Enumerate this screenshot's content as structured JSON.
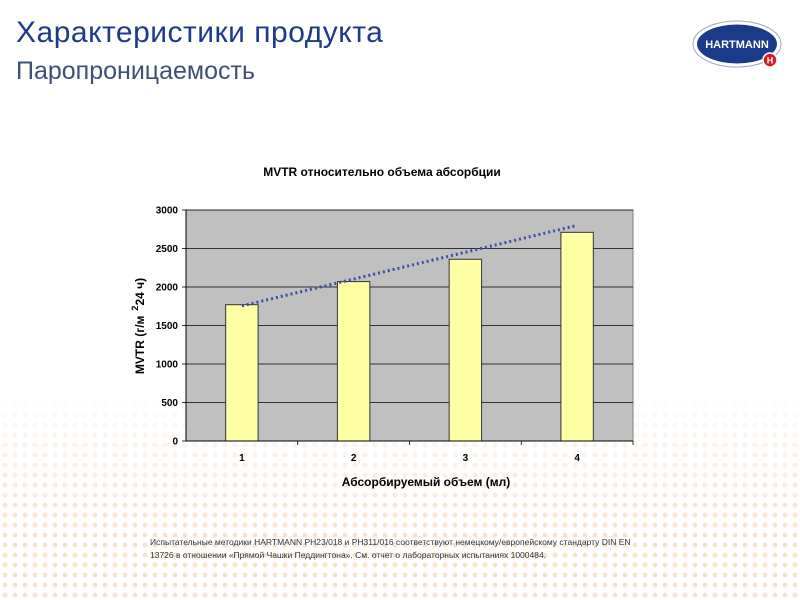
{
  "header": {
    "title": "Характеристики продукта",
    "subtitle": "Паропроницаемость"
  },
  "logo": {
    "text": "HARTMANN",
    "mark": "H",
    "colors": {
      "navy": "#1a3a8a",
      "red": "#d71920"
    }
  },
  "chart_data": {
    "type": "bar",
    "title": "MVTR относительно объема абсорбции",
    "xlabel": "Абсорбируемый объем (мл)",
    "ylabel_pre": "MVTR (г/м",
    "ylabel_sup": "2",
    "ylabel_post": "24 ч)",
    "categories": [
      "1",
      "2",
      "3",
      "4"
    ],
    "values": [
      1770,
      2070,
      2360,
      2710
    ],
    "ylim": [
      0,
      3000
    ],
    "yticks": [
      0,
      500,
      1000,
      1500,
      2000,
      2500,
      3000
    ],
    "grid": true,
    "legend": "none",
    "trendline": {
      "type": "linear",
      "style": "dotted",
      "color": "#3b4aa8",
      "start": 1755,
      "end": 2800
    },
    "colors": {
      "bar": "#ffffa6",
      "bar_border": "#333333",
      "plot_bg": "#c0c0c0"
    }
  },
  "footnote": {
    "line1": "Испытательные методики HARTMANN PH23/018 и PH311/016  соответствуют немецкому/европейскому стандарту DIN EN",
    "line2": "13726 в отношении «Прямой Чашки Педдингтона». См. отчет о лабораторных испытаниях 1000484."
  }
}
